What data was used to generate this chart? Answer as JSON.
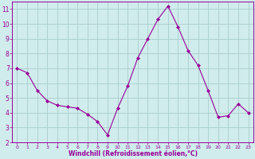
{
  "x": [
    0,
    1,
    2,
    3,
    4,
    5,
    6,
    7,
    8,
    9,
    10,
    11,
    12,
    13,
    14,
    15,
    16,
    17,
    18,
    19,
    20,
    21,
    22,
    23
  ],
  "y": [
    7.0,
    6.7,
    5.5,
    4.8,
    4.5,
    4.4,
    4.3,
    3.9,
    3.4,
    2.5,
    4.3,
    5.8,
    7.7,
    9.0,
    10.3,
    11.2,
    9.8,
    8.2,
    7.2,
    5.5,
    3.7,
    3.8,
    4.6,
    4.0
  ],
  "line_color": "#990099",
  "marker": "D",
  "marker_size": 2.0,
  "bg_color": "#d0ecec",
  "grid_color": "#aacece",
  "xlabel": "Windchill (Refroidissement éolien,°C)",
  "xlabel_color": "#990099",
  "tick_color": "#990099",
  "spine_color": "#990099",
  "xlim": [
    -0.5,
    23.5
  ],
  "ylim": [
    2,
    11.5
  ],
  "yticks": [
    2,
    3,
    4,
    5,
    6,
    7,
    8,
    9,
    10,
    11
  ],
  "xticks": [
    0,
    1,
    2,
    3,
    4,
    5,
    6,
    7,
    8,
    9,
    10,
    11,
    12,
    13,
    14,
    15,
    16,
    17,
    18,
    19,
    20,
    21,
    22,
    23
  ],
  "x_fontsize": 4.5,
  "y_fontsize": 5.5,
  "xlabel_fontsize": 5.5
}
